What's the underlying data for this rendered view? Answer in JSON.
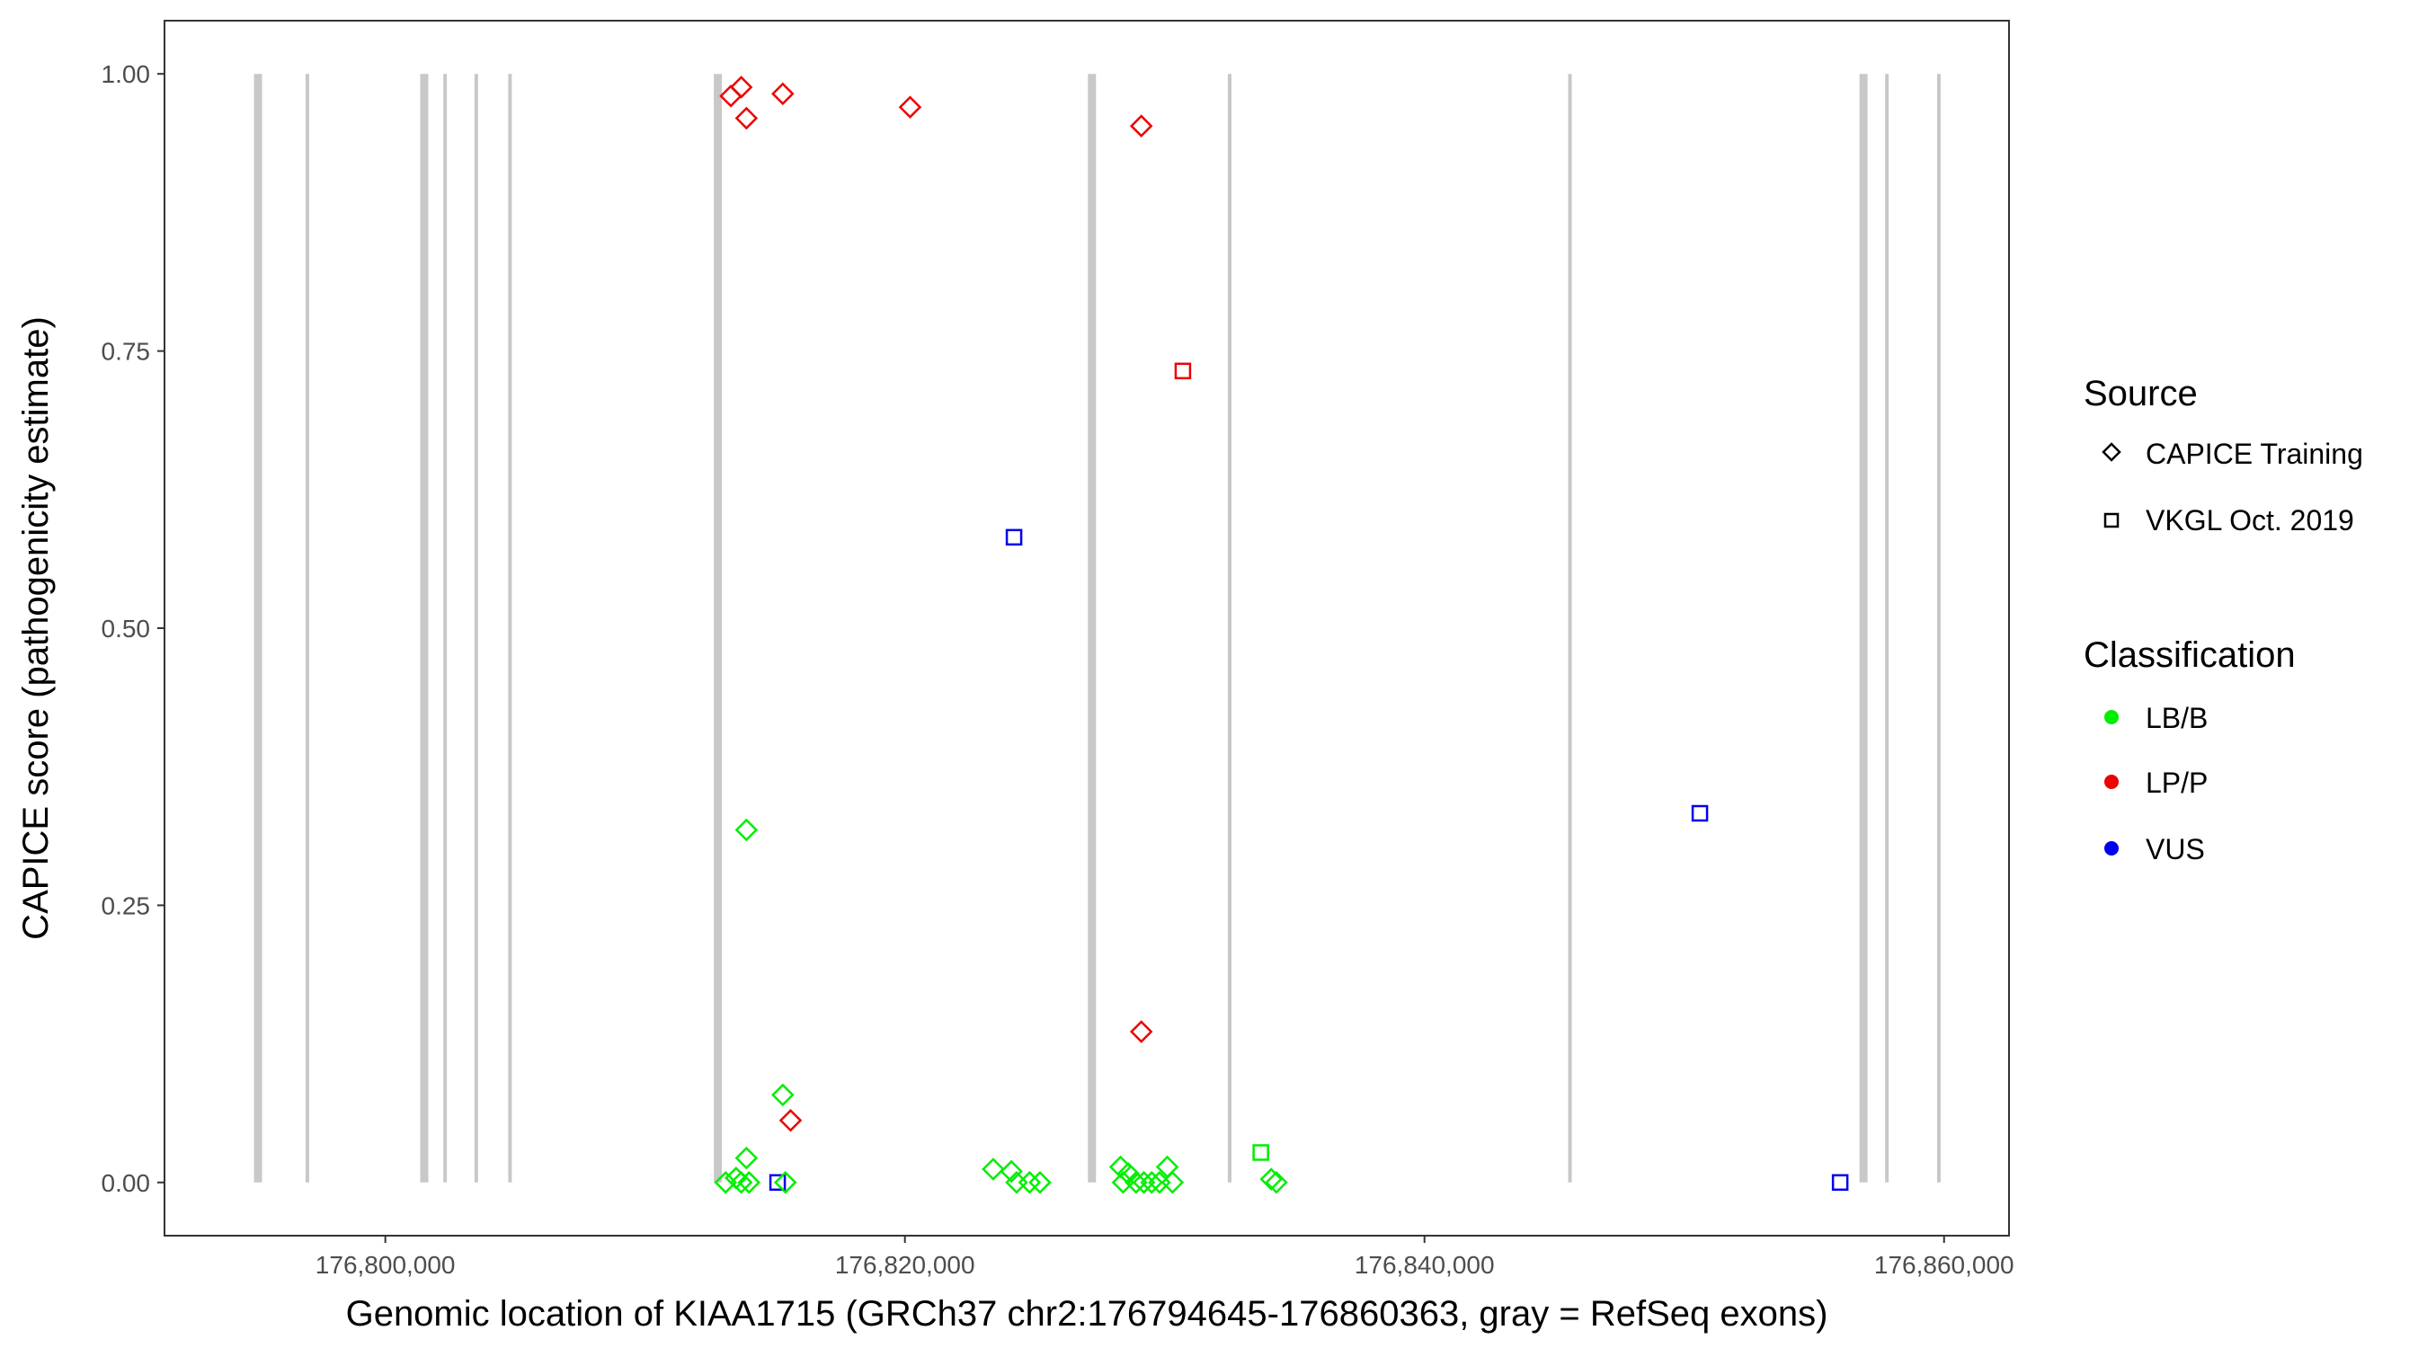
{
  "chart_data": {
    "type": "scatter",
    "title": "",
    "xlabel": "Genomic location of KIAA1715 (GRCh37 chr2:176794645-176860363, gray = RefSeq exons)",
    "ylabel": "CAPICE score (pathogenicity estimate)",
    "xlim": [
      176791500,
      176862500
    ],
    "ylim": [
      -0.048,
      1.048
    ],
    "x_ticks": [
      176800000,
      176820000,
      176840000,
      176860000
    ],
    "x_tick_labels": [
      "176,800,000",
      "176,820,000",
      "176,840,000",
      "176,860,000"
    ],
    "y_ticks": [
      0,
      0.25,
      0.5,
      0.75,
      1.0
    ],
    "y_tick_labels": [
      "0.00",
      "0.25",
      "0.50",
      "0.75",
      "1.00"
    ],
    "grid": false,
    "exons": [
      {
        "x": 176795100,
        "thick": true
      },
      {
        "x": 176797000,
        "thick": false
      },
      {
        "x": 176801500,
        "thick": true
      },
      {
        "x": 176802300,
        "thick": false
      },
      {
        "x": 176803500,
        "thick": false
      },
      {
        "x": 176804800,
        "thick": false
      },
      {
        "x": 176812800,
        "thick": true
      },
      {
        "x": 176827200,
        "thick": true
      },
      {
        "x": 176832500,
        "thick": false
      },
      {
        "x": 176845600,
        "thick": false
      },
      {
        "x": 176856900,
        "thick": true
      },
      {
        "x": 176857800,
        "thick": false
      },
      {
        "x": 176859800,
        "thick": false
      }
    ],
    "legend_position": "right",
    "legend": {
      "source_title": "Source",
      "source_items": [
        {
          "label": "CAPICE Training",
          "shape": "diamond"
        },
        {
          "label": "VKGL Oct. 2019",
          "shape": "square"
        }
      ],
      "class_title": "Classification",
      "class_items": [
        {
          "label": "LB/B",
          "color": "#00ee00"
        },
        {
          "label": "LP/P",
          "color": "#ee0000"
        },
        {
          "label": "VUS",
          "color": "#0000ee"
        }
      ]
    },
    "colors": {
      "LB/B": "#00ee00",
      "LP/P": "#ee0000",
      "VUS": "#0000ee",
      "exon": "#c8c8c8"
    },
    "series": [
      {
        "name": "LP/P",
        "source": "CAPICE Training",
        "points": [
          [
            176813300,
            0.98
          ],
          [
            176813700,
            0.988
          ],
          [
            176813900,
            0.96
          ],
          [
            176815300,
            0.982
          ],
          [
            176820200,
            0.97
          ],
          [
            176829100,
            0.953
          ],
          [
            176829100,
            0.136
          ],
          [
            176815600,
            0.056
          ]
        ]
      },
      {
        "name": "LP/P",
        "source": "VKGL Oct. 2019",
        "points": [
          [
            176830700,
            0.732
          ]
        ]
      },
      {
        "name": "VUS",
        "source": "VKGL Oct. 2019",
        "points": [
          [
            176824200,
            0.582
          ],
          [
            176850600,
            0.333
          ],
          [
            176856000,
            0.0
          ],
          [
            176815100,
            0.0
          ]
        ]
      },
      {
        "name": "LB/B",
        "source": "CAPICE Training",
        "points": [
          [
            176813900,
            0.318
          ],
          [
            176815300,
            0.079
          ],
          [
            176813900,
            0.022
          ],
          [
            176813100,
            0.0
          ],
          [
            176813500,
            0.004
          ],
          [
            176813700,
            0.0
          ],
          [
            176814000,
            0.0
          ],
          [
            176815400,
            0.0
          ],
          [
            176823400,
            0.012
          ],
          [
            176824100,
            0.01
          ],
          [
            176824300,
            0.0
          ],
          [
            176824800,
            0.0
          ],
          [
            176825200,
            0.0
          ],
          [
            176828300,
            0.014
          ],
          [
            176828400,
            0.0
          ],
          [
            176828600,
            0.008
          ],
          [
            176828900,
            0.0
          ],
          [
            176829200,
            0.0
          ],
          [
            176829500,
            0.0
          ],
          [
            176829800,
            0.0
          ],
          [
            176830100,
            0.014
          ],
          [
            176830300,
            0.0
          ],
          [
            176834100,
            0.003
          ],
          [
            176834300,
            0.0
          ]
        ]
      },
      {
        "name": "LB/B",
        "source": "VKGL Oct. 2019",
        "points": [
          [
            176833700,
            0.027
          ]
        ]
      }
    ]
  }
}
